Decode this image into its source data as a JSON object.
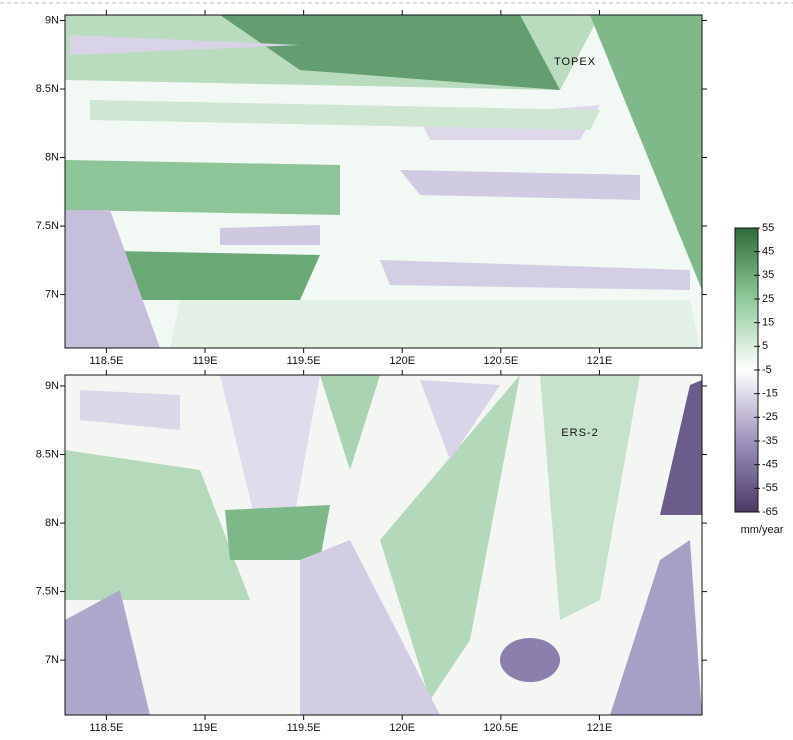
{
  "chart_data": [
    {
      "type": "heatmap",
      "annotation": "TOPEX",
      "xlim": [
        118.29,
        121.52
      ],
      "xticks": [
        {
          "value": 118.5,
          "label": "118.5E"
        },
        {
          "value": 119,
          "label": "119E"
        },
        {
          "value": 119.5,
          "label": "119.5E"
        },
        {
          "value": 120,
          "label": "120E"
        },
        {
          "value": 120.5,
          "label": "120.5E"
        },
        {
          "value": 121,
          "label": "121E"
        }
      ],
      "ylim": [
        6.61,
        9.04
      ],
      "yticks": [
        {
          "value": 9,
          "label": "9N"
        },
        {
          "value": 8.5,
          "label": "8.5N"
        },
        {
          "value": 8,
          "label": "8N"
        },
        {
          "value": 7.5,
          "label": "7.5N"
        },
        {
          "value": 7,
          "label": "7N"
        }
      ],
      "colorbar": {
        "lim": [
          -65,
          55
        ],
        "ticks": [
          55,
          45,
          35,
          25,
          15,
          5,
          -5,
          -15,
          -25,
          -35,
          -45,
          -55,
          -65
        ],
        "label": "mm/year",
        "colormap": [
          "#4a3b66",
          "#9e93bd",
          "#ffffff",
          "#8fca9b",
          "#2f6b3a"
        ]
      }
    },
    {
      "type": "heatmap",
      "annotation": "ERS-2",
      "xlim": [
        118.29,
        121.52
      ],
      "xticks": [
        {
          "value": 118.5,
          "label": "118.5E"
        },
        {
          "value": 119,
          "label": "119E"
        },
        {
          "value": 119.5,
          "label": "119.5E"
        },
        {
          "value": 120,
          "label": "120E"
        },
        {
          "value": 120.5,
          "label": "120.5E"
        },
        {
          "value": 121,
          "label": "121E"
        }
      ],
      "ylim": [
        6.6,
        9.08
      ],
      "yticks": [
        {
          "value": 9,
          "label": "9N"
        },
        {
          "value": 8.5,
          "label": "8.5N"
        },
        {
          "value": 8,
          "label": "8N"
        },
        {
          "value": 7.5,
          "label": "7.5N"
        },
        {
          "value": 7,
          "label": "7N"
        }
      ]
    }
  ]
}
